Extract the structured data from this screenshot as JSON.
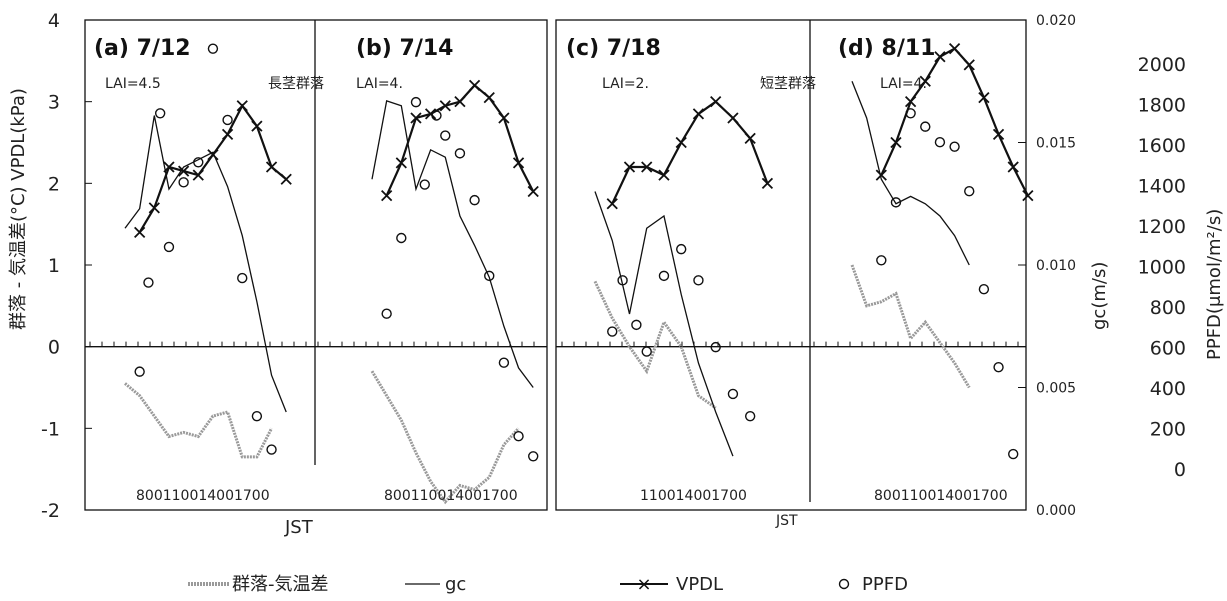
{
  "chart_data": {
    "type": "line",
    "left_axis_label": "群落 - 気温差(°C) VPDL(kPa)",
    "left_ticks": [
      "4",
      "3",
      "2",
      "1",
      "0",
      "-1",
      "-2"
    ],
    "gc_axis_label": "gc(m/s)",
    "gc_ticks": [
      "0.020",
      "0.015",
      "0.010",
      "0.005",
      "0.000"
    ],
    "ppfd_axis_label": "PPFD(μmol/m²/s)",
    "ppfd_ticks": [
      "2000",
      "1800",
      "1600",
      "1400",
      "1200",
      "1000",
      "800",
      "600",
      "400",
      "200",
      "0"
    ],
    "xlabel": "JST",
    "group_labels": [
      "長茎群落",
      "短茎群落"
    ],
    "legend": [
      "群落-気温差",
      "gc",
      "VPDL",
      "PPFD"
    ],
    "panels": [
      {
        "title": "(a) 7/12",
        "la": "LAI=4.5",
        "x_ticks_label": "80011001400​1700",
        "vpdl": {
          "x": [
            8.0,
            8.5,
            9.0,
            9.5,
            10.0,
            10.5,
            11.0,
            11.5,
            12.0,
            12.5,
            13.0,
            13.5
          ],
          "y": [
            1.4,
            1.7,
            2.2,
            2.15,
            2.1,
            2.35,
            2.6,
            2.95,
            2.7,
            2.2,
            2.05,
            null
          ]
        },
        "gc": {
          "x": [
            7.5,
            8.0,
            8.5,
            9.0,
            9.5,
            10.0,
            10.5,
            11.0,
            11.5,
            12.0,
            12.5,
            13.0
          ],
          "y": [
            0.0115,
            0.0123,
            0.0161,
            0.0131,
            0.014,
            0.0143,
            0.0146,
            0.0132,
            0.0112,
            0.0085,
            0.0055,
            0.004
          ]
        },
        "temp_diff": {
          "x": [
            7.5,
            8.0,
            8.5,
            9.0,
            9.5,
            10.0,
            10.5,
            11.0,
            11.5,
            12.0,
            12.5
          ],
          "y": [
            -0.45,
            -0.6,
            -0.85,
            -1.1,
            -1.05,
            -1.1,
            -0.85,
            -0.8,
            -1.35,
            -1.35,
            -1.0
          ]
        },
        "ppfd": {
          "x": [
            8.0,
            8.3,
            8.7,
            9.0,
            9.5,
            10.0,
            10.5,
            11.0,
            11.5,
            12.0,
            12.5,
            13.0
          ],
          "y": [
            620,
            1020,
            1780,
            1180,
            1470,
            1560,
            2070,
            1750,
            1040,
            420,
            270,
            null
          ]
        }
      },
      {
        "title": "(b) 7/14",
        "la": "LAI=4.",
        "x_ticks_label": "80011001400​1700",
        "vpdl": {
          "x": [
            8.0,
            8.5,
            9.0,
            9.5,
            10.0,
            10.5,
            11.0,
            11.5,
            12.0,
            12.5,
            13.0,
            13.5
          ],
          "y": [
            1.85,
            2.25,
            2.8,
            2.85,
            2.95,
            3.0,
            3.2,
            3.05,
            2.8,
            2.25,
            1.9,
            null
          ]
        },
        "gc": {
          "x": [
            7.5,
            8.0,
            8.5,
            9.0,
            9.5,
            10.0,
            10.5,
            11.0,
            11.5,
            12.0,
            12.5,
            13.0
          ],
          "y": [
            0.0135,
            0.0167,
            0.0165,
            0.0131,
            0.0147,
            0.0144,
            0.012,
            0.0108,
            0.0095,
            0.0075,
            0.0058,
            0.005
          ]
        },
        "temp_diff": {
          "x": [
            7.5,
            8.0,
            8.5,
            9.0,
            9.5,
            10.0,
            10.5,
            11.0,
            11.5,
            12.0,
            12.5
          ],
          "y": [
            -0.3,
            -0.6,
            -0.9,
            -1.3,
            -1.65,
            -1.9,
            -1.7,
            -1.75,
            -1.6,
            -1.2,
            -1.0
          ]
        },
        "ppfd": {
          "x": [
            8.0,
            8.5,
            9.0,
            9.3,
            9.7,
            10.0,
            10.5,
            11.0,
            11.5,
            12.0,
            12.5,
            13.0
          ],
          "y": [
            880,
            1220,
            1830,
            1460,
            1770,
            1680,
            1600,
            1390,
            1050,
            660,
            330,
            240
          ]
        }
      },
      {
        "title": "(c) 7/18",
        "la": "LAI=2.",
        "x_ticks_label": "1100​1400​1700",
        "vpdl": {
          "x": [
            9.0,
            9.5,
            10.0,
            10.5,
            11.0,
            11.5,
            12.0,
            12.5,
            13.0,
            13.5
          ],
          "y": [
            1.75,
            2.2,
            2.2,
            2.1,
            2.5,
            2.85,
            3.0,
            2.8,
            2.55,
            2.0
          ]
        },
        "gc": {
          "x": [
            8.5,
            9.0,
            9.5,
            10.0,
            10.5,
            11.0,
            11.5,
            12.0,
            12.5
          ],
          "y": [
            0.013,
            0.011,
            0.008,
            0.0115,
            0.012,
            0.0088,
            0.006,
            0.004,
            0.0022
          ]
        },
        "temp_diff": {
          "x": [
            8.5,
            9.0,
            9.5,
            10.0,
            10.5,
            11.0,
            11.5,
            12.0
          ],
          "y": [
            0.8,
            0.35,
            0.0,
            -0.3,
            0.3,
            0.0,
            -0.6,
            -0.75
          ]
        },
        "ppfd": {
          "x": [
            9.0,
            9.3,
            9.7,
            10.0,
            10.5,
            11.0,
            11.5,
            12.0,
            12.5,
            13.0
          ],
          "y": [
            800,
            1030,
            830,
            710,
            1050,
            1170,
            1030,
            730,
            520,
            420
          ]
        }
      },
      {
        "title": "(d) 8/11",
        "la": "LAI=4.",
        "x_ticks_label": "80011001400​1700",
        "vpdl": {
          "x": [
            8.0,
            8.5,
            9.0,
            9.5,
            10.0,
            10.5,
            11.0,
            11.5,
            12.0,
            12.5,
            13.0
          ],
          "y": [
            2.1,
            2.5,
            3.0,
            3.25,
            3.55,
            3.65,
            3.45,
            3.05,
            2.6,
            2.2,
            1.85
          ]
        },
        "gc": {
          "x": [
            7.0,
            7.5,
            8.0,
            8.5,
            9.0,
            9.5,
            10.0,
            10.5,
            11.0
          ],
          "y": [
            0.0175,
            0.016,
            0.0135,
            0.0125,
            0.0128,
            0.0125,
            0.012,
            0.0112,
            0.01
          ]
        },
        "temp_diff": {
          "x": [
            7.0,
            7.5,
            8.0,
            8.5,
            9.0,
            9.5,
            10.0,
            10.5,
            11.0
          ],
          "y": [
            1.0,
            0.5,
            0.55,
            0.65,
            0.1,
            0.3,
            0.05,
            -0.2,
            -0.5
          ]
        },
        "ppfd": {
          "x": [
            8.0,
            8.5,
            9.0,
            9.5,
            10.0,
            10.5,
            11.0,
            11.5,
            12.0,
            12.5
          ],
          "y": [
            1120,
            1380,
            1780,
            1720,
            1650,
            1630,
            1430,
            990,
            640,
            250
          ]
        }
      }
    ]
  }
}
